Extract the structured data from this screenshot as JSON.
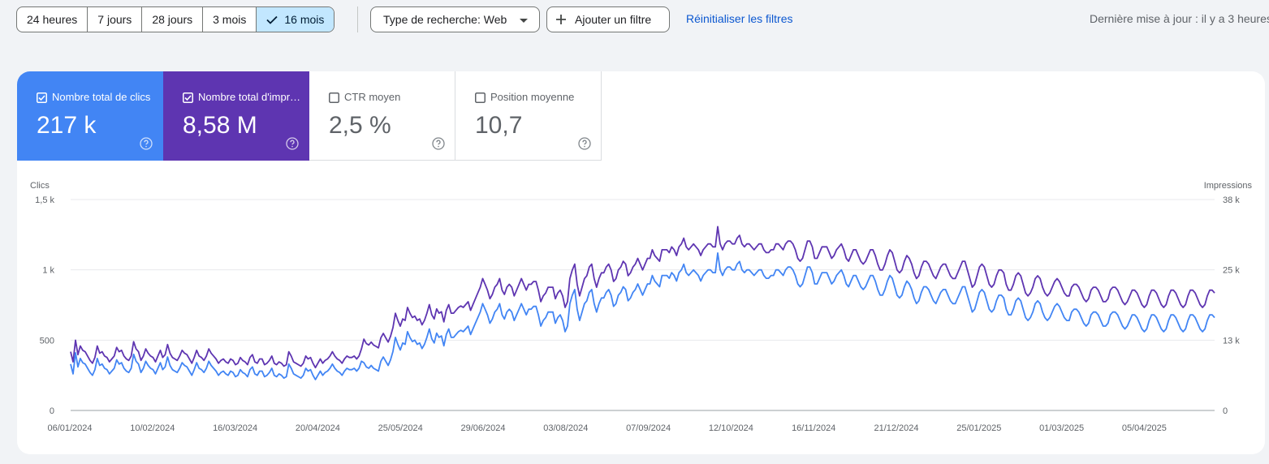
{
  "toolbar": {
    "date_ranges": [
      "24 heures",
      "7 jours",
      "28 jours",
      "3 mois",
      "16 mois"
    ],
    "active_range": "16 mois",
    "search_type_label": "Type de recherche: Web",
    "add_filter_label": "Ajouter un filtre",
    "reset_label": "Réinitialiser les filtres",
    "updated_label": "Dernière mise à jour : il y a 3 heures"
  },
  "metrics": [
    {
      "label": "Nombre total de clics",
      "value": "217 k",
      "checked": true,
      "color": "#4285f4"
    },
    {
      "label": "Nombre total d'impressions",
      "value": "8,58 M",
      "checked": true,
      "color": "#5e35b1"
    },
    {
      "label": "CTR moyen",
      "value": "2,5 %",
      "checked": false,
      "color": "#ffffff"
    },
    {
      "label": "Position moyenne",
      "value": "10,7",
      "checked": false,
      "color": "#ffffff"
    }
  ],
  "icons": {
    "help": "help-circle-icon",
    "check": "check-icon",
    "dropdown": "dropdown-arrow-icon",
    "plus": "plus-icon"
  },
  "chart_data": {
    "type": "line",
    "left_axis_label": "Clics",
    "right_axis_label": "Impressions",
    "left_ticks": [
      "0",
      "500",
      "1 k",
      "1,5 k"
    ],
    "right_ticks": [
      "0",
      "13 k",
      "25 k",
      "38 k"
    ],
    "left_ylim": [
      0,
      1500
    ],
    "right_ylim": [
      0,
      38000
    ],
    "x_tick_labels": [
      "06/01/2024",
      "10/02/2024",
      "16/03/2024",
      "20/04/2024",
      "25/05/2024",
      "29/06/2024",
      "03/08/2024",
      "07/09/2024",
      "12/10/2024",
      "16/11/2024",
      "21/12/2024",
      "25/01/2025",
      "01/03/2025",
      "05/04/2025"
    ],
    "series": [
      {
        "name": "Nombre total de clics",
        "axis": "left",
        "color": "#4285f4",
        "values": [
          330,
          260,
          410,
          310,
          370,
          340,
          330,
          300,
          270,
          250,
          290,
          370,
          320,
          330,
          300,
          290,
          260,
          280,
          300,
          360,
          330,
          340,
          300,
          280,
          270,
          300,
          400,
          350,
          330,
          270,
          300,
          350,
          320,
          300,
          290,
          260,
          300,
          340,
          290,
          310,
          380,
          320,
          290,
          280,
          270,
          300,
          340,
          320,
          310,
          280,
          250,
          290,
          340,
          300,
          290,
          270,
          300,
          350,
          320,
          300,
          280,
          250,
          270,
          280,
          260,
          250,
          280,
          270,
          240,
          250,
          290,
          270,
          260,
          240,
          290,
          310,
          260,
          250,
          280,
          280,
          240,
          250,
          270,
          300,
          250,
          240,
          260,
          250,
          230,
          240,
          330,
          300,
          260,
          250,
          240,
          230,
          250,
          300,
          280,
          290,
          250,
          220,
          250,
          280,
          250,
          270,
          280,
          300,
          330,
          300,
          280,
          270,
          250,
          280,
          300,
          290,
          290,
          300,
          280,
          300,
          350,
          340,
          310,
          300,
          320,
          300,
          290,
          280,
          350,
          380,
          350,
          320,
          360,
          420,
          520,
          470,
          430,
          480,
          470,
          560,
          520,
          490,
          500,
          470,
          480,
          440,
          470,
          520,
          580,
          510,
          480,
          550,
          520,
          530,
          460,
          540,
          580,
          520,
          520,
          540,
          560,
          570,
          560,
          580,
          600,
          540,
          580,
          620,
          660,
          700,
          760,
          720,
          680,
          620,
          650,
          700,
          720,
          760,
          680,
          650,
          700,
          720,
          700,
          640,
          680,
          720,
          760,
          720,
          680,
          720,
          720,
          740,
          740,
          680,
          600,
          640,
          660,
          700,
          700,
          700,
          620,
          660,
          680,
          640,
          560,
          600,
          760,
          820,
          860,
          720,
          640,
          700,
          760,
          780,
          840,
          860,
          760,
          700,
          760,
          800,
          800,
          840,
          860,
          820,
          740,
          760,
          820,
          840,
          880,
          860,
          780,
          800,
          840,
          860,
          900,
          860,
          820,
          860,
          900,
          900,
          960,
          920,
          900,
          880,
          960,
          960,
          960,
          940,
          980,
          960,
          920,
          980,
          1000,
          1040,
          980,
          960,
          980,
          1000,
          980,
          960,
          920,
          960,
          980,
          1000,
          1000,
          980,
          980,
          1120,
          1000,
          960,
          1000,
          1020,
          1020,
          1000,
          1000,
          1040,
          1060,
          1000,
          980,
          1000,
          1000,
          980,
          960,
          980,
          1000,
          1000,
          960,
          940,
          940,
          960,
          960,
          1000,
          1000,
          980,
          960,
          1000,
          1020,
          1020,
          1000,
          960,
          900,
          880,
          900,
          960,
          1020,
          1020,
          980,
          900,
          900,
          940,
          980,
          980,
          980,
          940,
          900,
          920,
          960,
          980,
          1000,
          960,
          900,
          880,
          920,
          960,
          960,
          920,
          880,
          860,
          880,
          920,
          960,
          960,
          920,
          860,
          820,
          820,
          860,
          920,
          960,
          940,
          880,
          820,
          800,
          820,
          880,
          920,
          900,
          860,
          800,
          760,
          780,
          840,
          880,
          880,
          860,
          820,
          780,
          760,
          800,
          840,
          860,
          860,
          820,
          780,
          760,
          760,
          800,
          840,
          880,
          880,
          820,
          760,
          700,
          720,
          780,
          840,
          860,
          840,
          780,
          720,
          700,
          720,
          780,
          820,
          820,
          800,
          720,
          680,
          680,
          720,
          780,
          800,
          780,
          720,
          660,
          640,
          660,
          700,
          760,
          780,
          760,
          700,
          660,
          640,
          660,
          700,
          740,
          760,
          740,
          700,
          660,
          640,
          640,
          700,
          720,
          720,
          700,
          660,
          620,
          600,
          620,
          680,
          700,
          700,
          680,
          640,
          600,
          600,
          620,
          680,
          700,
          700,
          680,
          640,
          600,
          580,
          600,
          640,
          680,
          680,
          660,
          620,
          580,
          560,
          580,
          640,
          680,
          680,
          660,
          620,
          580,
          560,
          580,
          640,
          680,
          680,
          660,
          620,
          580,
          560,
          580,
          640,
          680,
          680,
          660,
          620,
          580,
          560,
          580,
          640,
          680,
          680,
          660
        ],
        "values_note": "see script"
      },
      {
        "name": "Nombre total d'impressions",
        "axis": "right",
        "color": "#5e35b1",
        "values": []
      }
    ]
  }
}
